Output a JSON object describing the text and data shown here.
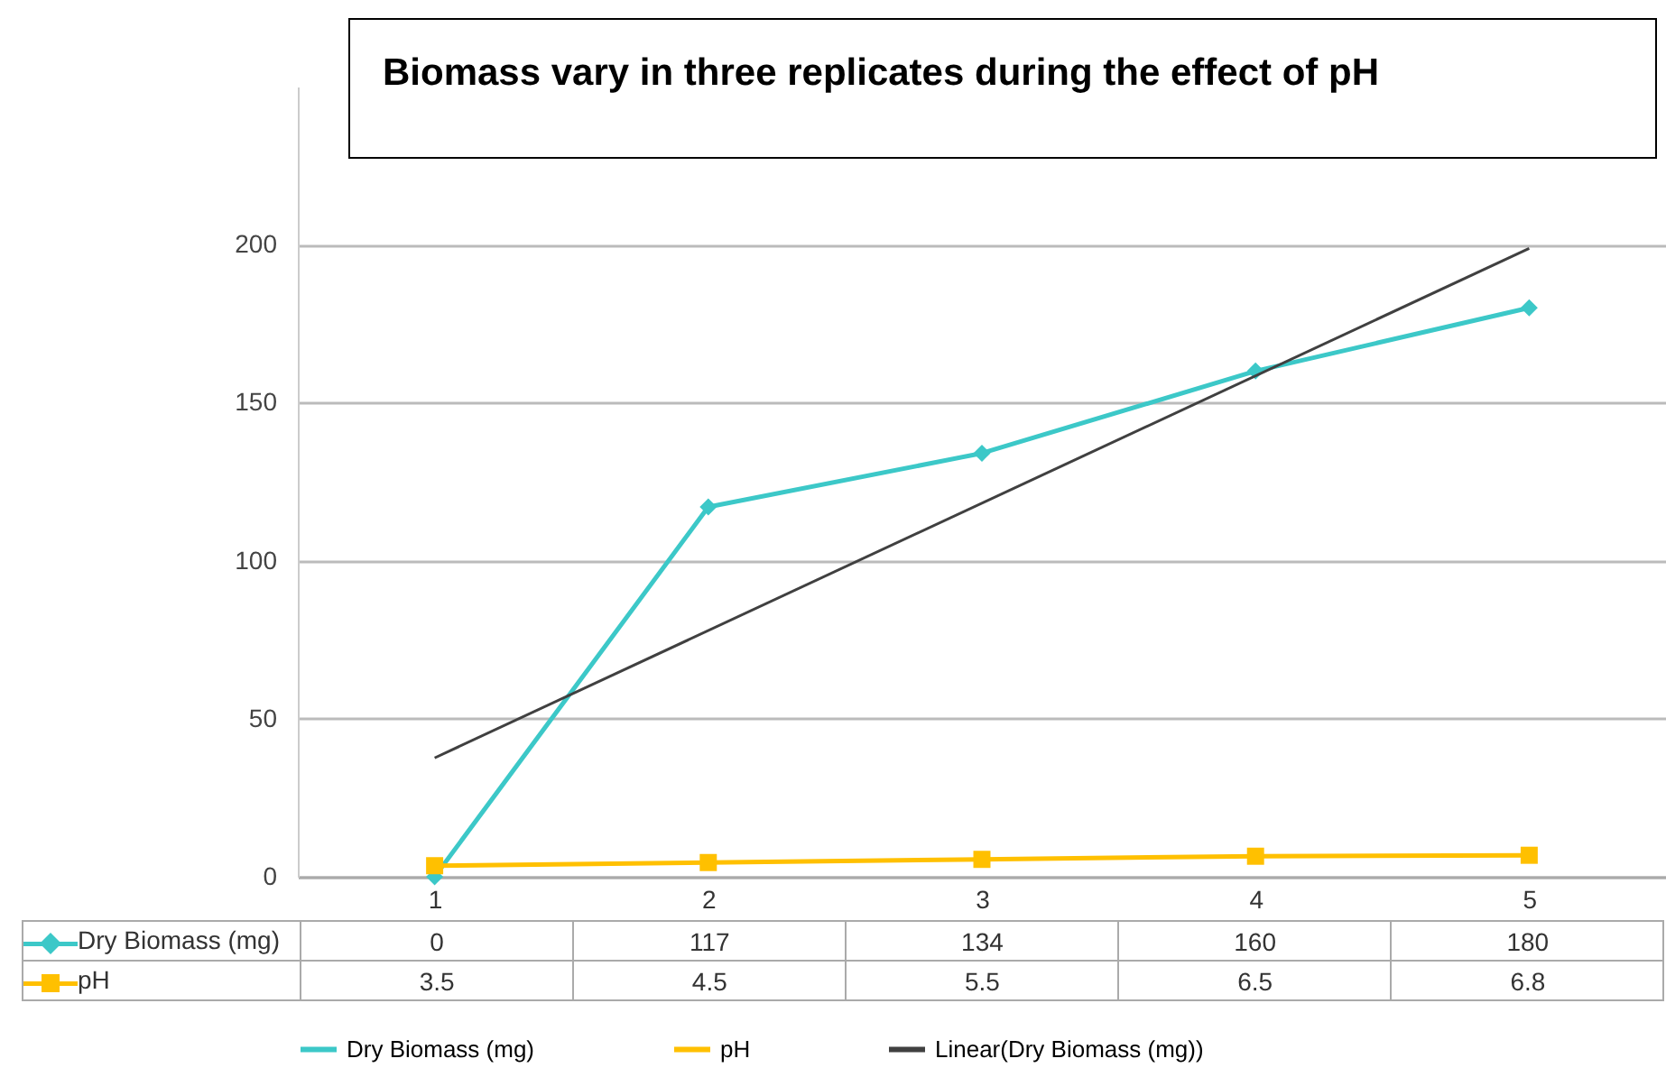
{
  "chart_data": {
    "type": "line",
    "title": "Biomass vary in three replicates during the effect of pH",
    "categories": [
      "1",
      "2",
      "3",
      "4",
      "5"
    ],
    "series": [
      {
        "name": "Dry Biomass (mg)",
        "color": "#3cc8c8",
        "marker": "diamond",
        "values": [
          0,
          117,
          134,
          160,
          180
        ],
        "value_labels": [
          "0",
          "117",
          "134",
          "160",
          "180"
        ]
      },
      {
        "name": "pH",
        "color": "#ffc000",
        "marker": "square",
        "values": [
          3.5,
          4.5,
          5.5,
          6.5,
          6.8
        ],
        "value_labels": [
          "3.5",
          "4.5",
          "5.5",
          "6.5",
          "6.8"
        ]
      },
      {
        "name": "Linear(Dry Biomass (mg))",
        "color": "#404040",
        "type": "line",
        "marker": "none",
        "x": [
          "1",
          "5"
        ],
        "values": [
          37.6,
          198.8
        ]
      }
    ],
    "ylim": [
      0,
      250
    ],
    "yticks": [
      0,
      50,
      100,
      150,
      200
    ],
    "grid": "y",
    "legend": "bottom"
  }
}
